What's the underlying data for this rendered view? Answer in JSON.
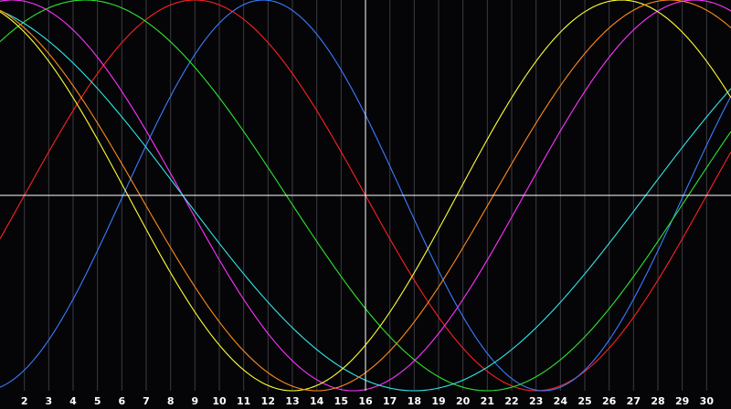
{
  "chart_data": {
    "type": "line",
    "title": "",
    "xlabel": "",
    "ylabel": "",
    "x_range": [
      1,
      31
    ],
    "y_range": [
      -1,
      1
    ],
    "x_ticks": [
      "2",
      "3",
      "4",
      "5",
      "6",
      "7",
      "8",
      "9",
      "10",
      "11",
      "12",
      "13",
      "14",
      "15",
      "16",
      "17",
      "18",
      "19",
      "20",
      "21",
      "22",
      "23",
      "24",
      "25",
      "26",
      "27",
      "28",
      "29",
      "30"
    ],
    "grid": "vertical",
    "crosshair": {
      "x": 16,
      "y": 0
    },
    "background": "#050508",
    "axis_color": "#ffffff",
    "grid_color": "#3a3a42",
    "series": [
      {
        "color": "#ff2020",
        "amplitude": 1.0,
        "period": 28,
        "peak_day": 9
      },
      {
        "color": "#3a7dff",
        "amplitude": 1.0,
        "period": 23,
        "peak_day": 11.8
      },
      {
        "color": "#2ee62e",
        "amplitude": 1.0,
        "period": 33,
        "peak_day": 4.5
      },
      {
        "color": "#ff33ff",
        "amplitude": 1.0,
        "period": 28,
        "peak_day": 1.5
      },
      {
        "color": "#33e6e6",
        "amplitude": 1.0,
        "period": 38,
        "peak_day": -1
      },
      {
        "color": "#ffff33",
        "amplitude": 1.0,
        "period": 27,
        "peak_day": -0.5
      },
      {
        "color": "#ff8c1a",
        "amplitude": 1.0,
        "period": 29,
        "peak_day": -0.5
      }
    ]
  }
}
